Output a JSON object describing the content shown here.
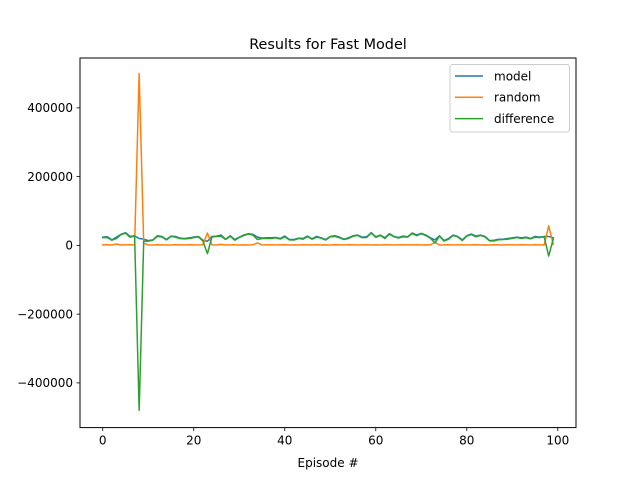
{
  "chart_data": {
    "type": "line",
    "title": "Results for Fast Model",
    "xlabel": "Episode #",
    "ylabel": "",
    "xlim": [
      -5,
      104
    ],
    "ylim": [
      -530000,
      545000
    ],
    "xticks": [
      0,
      20,
      40,
      60,
      80,
      100
    ],
    "yticks": [
      400000,
      200000,
      0,
      -200000,
      -400000
    ],
    "legend_position": "top-right",
    "grid": false,
    "series": [
      {
        "name": "model",
        "color": "#1f77b4",
        "x": [
          0,
          1,
          2,
          3,
          4,
          5,
          6,
          7,
          8,
          9,
          10,
          11,
          12,
          13,
          14,
          15,
          16,
          17,
          18,
          19,
          20,
          21,
          22,
          23,
          24,
          25,
          26,
          27,
          28,
          29,
          30,
          31,
          32,
          33,
          34,
          35,
          36,
          37,
          38,
          39,
          40,
          41,
          42,
          43,
          44,
          45,
          46,
          47,
          48,
          49,
          50,
          51,
          52,
          53,
          54,
          55,
          56,
          57,
          58,
          59,
          60,
          61,
          62,
          63,
          64,
          65,
          66,
          67,
          68,
          69,
          70,
          71,
          72,
          73,
          74,
          75,
          76,
          77,
          78,
          79,
          80,
          81,
          82,
          83,
          84,
          85,
          86,
          87,
          88,
          89,
          90,
          91,
          92,
          93,
          94,
          95,
          96,
          97,
          98,
          99
        ],
        "values": [
          24000,
          25000,
          16000,
          24000,
          32000,
          37000,
          26000,
          28000,
          20000,
          18000,
          14000,
          16000,
          28000,
          26000,
          17000,
          27000,
          26000,
          21000,
          20000,
          22000,
          24000,
          26000,
          15000,
          12000,
          26000,
          27000,
          30000,
          18000,
          28000,
          17000,
          24000,
          30000,
          34000,
          32000,
          24000,
          21000,
          22000,
          22000,
          23000,
          20000,
          27000,
          17000,
          17000,
          21000,
          20000,
          27000,
          19000,
          26000,
          22000,
          17000,
          26000,
          28000,
          24000,
          18000,
          22000,
          28000,
          30000,
          24000,
          25000,
          37000,
          25000,
          30000,
          22000,
          34000,
          26000,
          23000,
          27000,
          25000,
          36000,
          30000,
          35000,
          30000,
          22000,
          16000,
          28000,
          14000,
          20000,
          30000,
          26000,
          16000,
          28000,
          33000,
          27000,
          30000,
          26000,
          14000,
          15000,
          18000,
          18000,
          20000,
          22000,
          24000,
          22000,
          24000,
          20000,
          26000,
          24000,
          26000,
          26000,
          22000
        ]
      },
      {
        "name": "random",
        "color": "#ff7f0e",
        "x": [
          0,
          1,
          2,
          3,
          4,
          5,
          6,
          7,
          8,
          9,
          10,
          11,
          12,
          13,
          14,
          15,
          16,
          17,
          18,
          19,
          20,
          21,
          22,
          23,
          24,
          25,
          26,
          27,
          28,
          29,
          30,
          31,
          32,
          33,
          34,
          35,
          36,
          37,
          38,
          39,
          40,
          41,
          42,
          43,
          44,
          45,
          46,
          47,
          48,
          49,
          50,
          51,
          52,
          53,
          54,
          55,
          56,
          57,
          58,
          59,
          60,
          61,
          62,
          63,
          64,
          65,
          66,
          67,
          68,
          69,
          70,
          71,
          72,
          73,
          74,
          75,
          76,
          77,
          78,
          79,
          80,
          81,
          82,
          83,
          84,
          85,
          86,
          87,
          88,
          89,
          90,
          91,
          92,
          93,
          94,
          95,
          96,
          97,
          98,
          99
        ],
        "values": [
          1500,
          2000,
          1000,
          4000,
          1000,
          1500,
          2000,
          1000,
          500000,
          6000,
          1500,
          1000,
          2000,
          1500,
          1000,
          1000,
          2000,
          1500,
          1000,
          2000,
          1500,
          1000,
          2000,
          36000,
          1500,
          1000,
          3000,
          1000,
          1500,
          2000,
          1000,
          1500,
          1000,
          2000,
          7000,
          1000,
          1500,
          2000,
          1000,
          1500,
          2000,
          1000,
          1500,
          1000,
          2000,
          1500,
          1000,
          2000,
          1000,
          1500,
          1000,
          2000,
          1500,
          1000,
          2000,
          1500,
          1000,
          1500,
          2000,
          1000,
          1500,
          1000,
          2000,
          1500,
          1000,
          1500,
          2000,
          1000,
          1500,
          2000,
          1000,
          1500,
          1000,
          9000,
          1000,
          1500,
          2000,
          1000,
          1500,
          2000,
          1000,
          1500,
          2000,
          1000,
          1500,
          1000,
          2000,
          1500,
          1000,
          2000,
          1500,
          1000,
          2000,
          1500,
          1000,
          2000,
          1500,
          1000,
          57000,
          3000
        ]
      },
      {
        "name": "difference",
        "color": "#2ca02c",
        "x": [
          0,
          1,
          2,
          3,
          4,
          5,
          6,
          7,
          8,
          9,
          10,
          11,
          12,
          13,
          14,
          15,
          16,
          17,
          18,
          19,
          20,
          21,
          22,
          23,
          24,
          25,
          26,
          27,
          28,
          29,
          30,
          31,
          32,
          33,
          34,
          35,
          36,
          37,
          38,
          39,
          40,
          41,
          42,
          43,
          44,
          45,
          46,
          47,
          48,
          49,
          50,
          51,
          52,
          53,
          54,
          55,
          56,
          57,
          58,
          59,
          60,
          61,
          62,
          63,
          64,
          65,
          66,
          67,
          68,
          69,
          70,
          71,
          72,
          73,
          74,
          75,
          76,
          77,
          78,
          79,
          80,
          81,
          82,
          83,
          84,
          85,
          86,
          87,
          88,
          89,
          90,
          91,
          92,
          93,
          94,
          95,
          96,
          97,
          98,
          99
        ],
        "values": [
          22500,
          23000,
          15000,
          20000,
          31000,
          35500,
          24000,
          27000,
          -480000,
          12000,
          12500,
          15000,
          26000,
          24500,
          16000,
          26000,
          24000,
          19500,
          19000,
          20000,
          22500,
          25000,
          13000,
          -24000,
          24500,
          26000,
          27000,
          17000,
          26500,
          15000,
          23000,
          28500,
          33000,
          30000,
          17000,
          20000,
          20500,
          20000,
          22000,
          18500,
          25000,
          16000,
          15500,
          20000,
          18000,
          25500,
          18000,
          24000,
          21000,
          15500,
          25000,
          26000,
          22500,
          17000,
          20000,
          26500,
          29000,
          22500,
          23000,
          36000,
          23500,
          29000,
          20000,
          32500,
          25000,
          21500,
          25000,
          24000,
          34500,
          28000,
          34000,
          28500,
          21000,
          7000,
          27000,
          12500,
          18000,
          29000,
          24500,
          14000,
          27000,
          31500,
          25000,
          29000,
          24500,
          13000,
          13000,
          16500,
          17000,
          18000,
          20500,
          23000,
          20000,
          22500,
          19000,
          24000,
          22500,
          25000,
          -31000,
          19000
        ]
      }
    ]
  }
}
